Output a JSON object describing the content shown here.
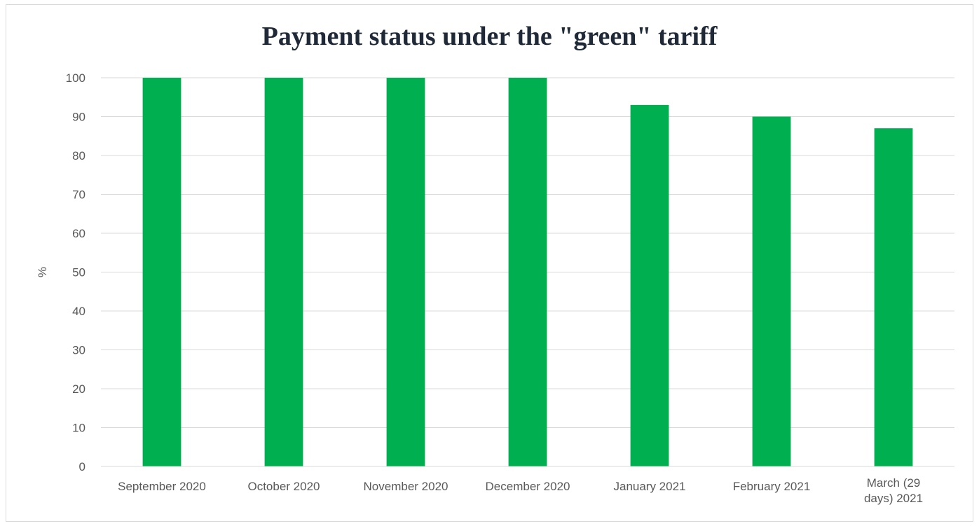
{
  "chart_data": {
    "type": "bar",
    "title": "Payment status under the \"green\" tariff",
    "ylabel": "%",
    "xlabel": "",
    "categories": [
      [
        "September 2020"
      ],
      [
        "October 2020"
      ],
      [
        "November 2020"
      ],
      [
        "December 2020"
      ],
      [
        "January 2021"
      ],
      [
        "February 2021"
      ],
      [
        "March (29",
        "days) 2021"
      ]
    ],
    "values": [
      100,
      100,
      100,
      100,
      93,
      90,
      87
    ],
    "ylim": [
      0,
      100
    ],
    "yticks": [
      0,
      10,
      20,
      30,
      40,
      50,
      60,
      70,
      80,
      90,
      100
    ],
    "grid": true,
    "legend": "none",
    "bar_color": "#00b050",
    "grid_color": "#d9d9d9"
  }
}
